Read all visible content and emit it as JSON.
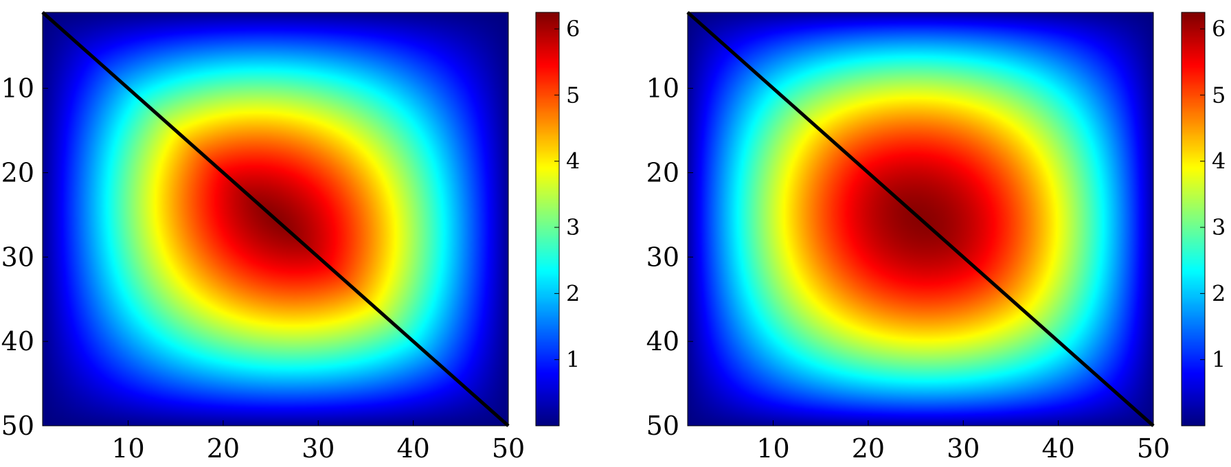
{
  "chart_data": [
    {
      "type": "heatmap",
      "title": "",
      "xlabel": "",
      "ylabel": "",
      "x_range": [
        1,
        50
      ],
      "y_range": [
        1,
        50
      ],
      "y_reversed": true,
      "x_ticks": [
        "10",
        "20",
        "30",
        "40",
        "50"
      ],
      "y_ticks": [
        "10",
        "20",
        "30",
        "40",
        "50"
      ],
      "colormap": "jet",
      "colorbar": {
        "range": [
          0,
          6.25
        ],
        "ticks": [
          "1",
          "2",
          "3",
          "4",
          "5",
          "6"
        ],
        "placement": "right"
      },
      "value_function": "anisotropic peak along main diagonal, max ≈ 6.2 at (25,25), ≈ 0 at corners",
      "diagonal_line": {
        "from": [
          1,
          1
        ],
        "to": [
          50,
          50
        ],
        "color": "#000000"
      },
      "shape": "lens"
    },
    {
      "type": "heatmap",
      "title": "",
      "xlabel": "",
      "ylabel": "",
      "x_range": [
        1,
        50
      ],
      "y_range": [
        1,
        50
      ],
      "y_reversed": true,
      "x_ticks": [
        "10",
        "20",
        "30",
        "40",
        "50"
      ],
      "y_ticks": [
        "10",
        "20",
        "30",
        "40",
        "50"
      ],
      "colormap": "jet",
      "colorbar": {
        "range": [
          0,
          6.25
        ],
        "ticks": [
          "1",
          "2",
          "3",
          "4",
          "5",
          "6"
        ],
        "placement": "right"
      },
      "value_function": "separable peak, max ≈ 6.2 at (25,25), ≈ 0 at edges",
      "diagonal_line": {
        "from": [
          1,
          1
        ],
        "to": [
          50,
          50
        ],
        "color": "#000000"
      },
      "shape": "round"
    }
  ]
}
